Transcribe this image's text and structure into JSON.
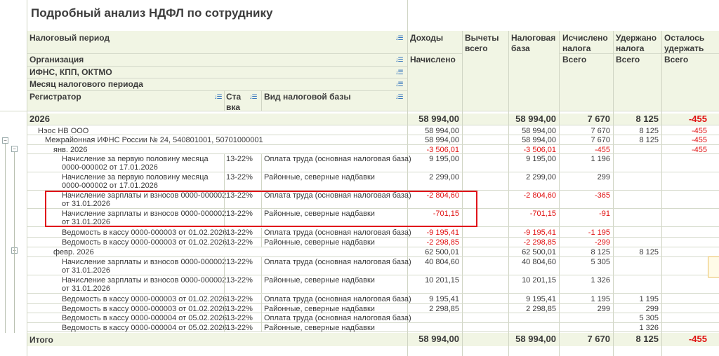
{
  "title": "Подробный анализ НДФЛ по сотруднику",
  "headers": {
    "period": "Налоговый период",
    "org": "Организация",
    "ifns": "ИФНС, КПП, ОКТМО",
    "month": "Месяц налогового периода",
    "registrar": "Регистратор",
    "rate_l1": "Ста",
    "rate_l2": "вка",
    "base_type": "Вид налоговой базы",
    "income": "Доходы",
    "accrued": "Начислено",
    "deductions_l1": "Вычеты",
    "deductions_l2": "всего",
    "taxbase_l1": "Налоговая",
    "taxbase_l2": "база",
    "calc_l1": "Исчислено",
    "calc_l2": "налога",
    "withheld_l1": "Удержано",
    "withheld_l2": "налога",
    "remain_l1": "Осталось",
    "remain_l2": "удержать",
    "total_calc": "Всего",
    "total_withheld": "Всего",
    "total_remain": "Всего"
  },
  "sort_icon": "sort-down-icon",
  "rows": [
    {
      "indent": 0,
      "kind": "year",
      "name": "2026",
      "rate": "",
      "btype": "",
      "income": "58 994,00",
      "ded": "",
      "base": "58 994,00",
      "calc": "7 670",
      "with": "8 125",
      "rem": "-455"
    },
    {
      "indent": 1,
      "kind": "group",
      "name": "Нэос НВ ООО",
      "rate": "",
      "btype": "",
      "income": "58 994,00",
      "ded": "",
      "base": "58 994,00",
      "calc": "7 670",
      "with": "8 125",
      "rem": "-455"
    },
    {
      "indent": 2,
      "kind": "group",
      "name": "Межрайонная ИФНС России № 24, 540801001, 50701000001",
      "rate": "",
      "btype": "",
      "income": "58 994,00",
      "ded": "",
      "base": "58 994,00",
      "calc": "7 670",
      "with": "8 125",
      "rem": "-455"
    },
    {
      "indent": 3,
      "kind": "group",
      "name": "янв. 2026",
      "rate": "",
      "btype": "",
      "income": "-3 506,01",
      "ded": "",
      "base": "-3 506,01",
      "calc": "-455",
      "with": "",
      "rem": "-455"
    },
    {
      "indent": 4,
      "kind": "item",
      "name": "Начисление за первую половину месяца",
      "name2": "0000-000002 от 17.01.2026",
      "rate": "13-22%",
      "btype": "Оплата труда (основная налоговая база)",
      "income": "9 195,00",
      "ded": "",
      "base": "9 195,00",
      "calc": "1 196",
      "with": "",
      "rem": ""
    },
    {
      "indent": 4,
      "kind": "item",
      "name": "Начисление за первую половину месяца",
      "name2": "0000-000002 от 17.01.2026",
      "rate": "13-22%",
      "btype": "Районные, северные надбавки",
      "income": "2 299,00",
      "ded": "",
      "base": "2 299,00",
      "calc": "299",
      "with": "",
      "rem": ""
    },
    {
      "indent": 4,
      "kind": "item",
      "name": "Начисление зарплаты и взносов 0000-000002",
      "name2": "от 31.01.2026",
      "rate": "13-22%",
      "btype": "Оплата труда (основная налоговая база)",
      "income": "-2 804,60",
      "ded": "",
      "base": "-2 804,60",
      "calc": "-365",
      "with": "",
      "rem": ""
    },
    {
      "indent": 4,
      "kind": "item",
      "name": "Начисление зарплаты и взносов 0000-000002",
      "name2": "от 31.01.2026",
      "rate": "13-22%",
      "btype": "Районные, северные надбавки",
      "income": "-701,15",
      "ded": "",
      "base": "-701,15",
      "calc": "-91",
      "with": "",
      "rem": ""
    },
    {
      "indent": 4,
      "kind": "item",
      "name": "Ведомость в кассу 0000-000003 от 01.02.2026",
      "rate": "13-22%",
      "btype": "Оплата труда (основная налоговая база)",
      "income": "-9 195,41",
      "ded": "",
      "base": "-9 195,41",
      "calc": "-1 195",
      "with": "",
      "rem": ""
    },
    {
      "indent": 4,
      "kind": "item",
      "name": "Ведомость в кассу 0000-000003 от 01.02.2026",
      "rate": "13-22%",
      "btype": "Районные, северные надбавки",
      "income": "-2 298,85",
      "ded": "",
      "base": "-2 298,85",
      "calc": "-299",
      "with": "",
      "rem": ""
    },
    {
      "indent": 3,
      "kind": "group",
      "name": "февр. 2026",
      "rate": "",
      "btype": "",
      "income": "62 500,01",
      "ded": "",
      "base": "62 500,01",
      "calc": "8 125",
      "with": "8 125",
      "rem": ""
    },
    {
      "indent": 4,
      "kind": "item",
      "name": "Начисление зарплаты и взносов 0000-000002",
      "name2": "от 31.01.2026",
      "rate": "13-22%",
      "btype": "Оплата труда (основная налоговая база)",
      "income": "40 804,60",
      "ded": "",
      "base": "40 804,60",
      "calc": "5 305",
      "with": "",
      "rem": ""
    },
    {
      "indent": 4,
      "kind": "item",
      "name": "Начисление зарплаты и взносов 0000-000002",
      "name2": "от 31.01.2026",
      "rate": "13-22%",
      "btype": "Районные, северные надбавки",
      "income": "10 201,15",
      "ded": "",
      "base": "10 201,15",
      "calc": "1 326",
      "with": "",
      "rem": ""
    },
    {
      "indent": 4,
      "kind": "item",
      "name": "Ведомость в кассу 0000-000003 от 01.02.2026",
      "rate": "13-22%",
      "btype": "Оплата труда (основная налоговая база)",
      "income": "9 195,41",
      "ded": "",
      "base": "9 195,41",
      "calc": "1 195",
      "with": "1 195",
      "rem": ""
    },
    {
      "indent": 4,
      "kind": "item",
      "name": "Ведомость в кассу 0000-000003 от 01.02.2026",
      "rate": "13-22%",
      "btype": "Районные, северные надбавки",
      "income": "2 298,85",
      "ded": "",
      "base": "2 298,85",
      "calc": "299",
      "with": "299",
      "rem": ""
    },
    {
      "indent": 4,
      "kind": "item",
      "name": "Ведомость в кассу 0000-000004 от 05.02.2026",
      "rate": "13-22%",
      "btype": "Оплата труда (основная налоговая база)",
      "income": "",
      "ded": "",
      "base": "",
      "calc": "",
      "with": "5 305",
      "rem": ""
    },
    {
      "indent": 4,
      "kind": "item",
      "name": "Ведомость в кассу 0000-000004 от 05.02.2026",
      "rate": "13-22%",
      "btype": "Районные, северные надбавки",
      "income": "",
      "ded": "",
      "base": "",
      "calc": "",
      "with": "1 326",
      "rem": ""
    }
  ],
  "total": {
    "name": "Итого",
    "income": "58 994,00",
    "ded": "",
    "base": "58 994,00",
    "calc": "7 670",
    "with": "8 125",
    "rem": "-455"
  },
  "colors": {
    "header_bg": "#f1f5e4",
    "negative": "#e01010",
    "highlight_box": "#e0141b",
    "sort_icon": "#1f66b8"
  }
}
